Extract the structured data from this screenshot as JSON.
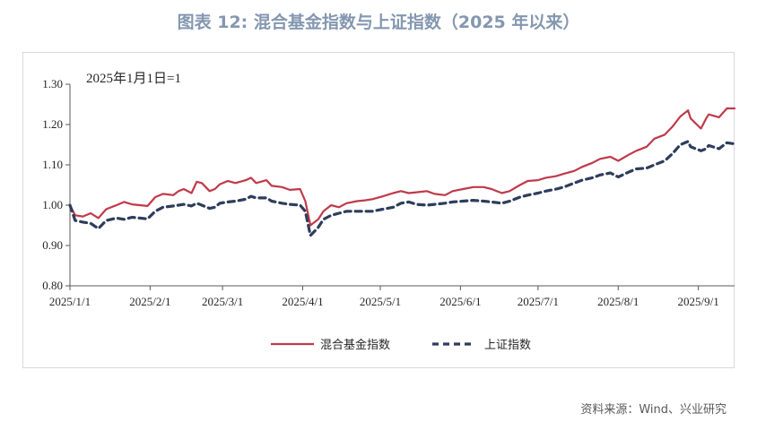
{
  "title": "图表 12: 混合基金指数与上证指数（2025 年以来）",
  "source": "资料来源：Wind、兴业研究",
  "chart_data": {
    "type": "line",
    "annotation": "2025年1月1日=1",
    "xlabel": "",
    "ylabel": "",
    "ylim": [
      0.8,
      1.3
    ],
    "y_ticks": [
      "0.80",
      "0.90",
      "1.00",
      "1.10",
      "1.20",
      "1.30"
    ],
    "x_ticks": [
      "2025/1/1",
      "2025/2/1",
      "2025/3/1",
      "2025/4/1",
      "2025/5/1",
      "2025/6/1",
      "2025/7/1",
      "2025/8/1",
      "2025/9/1"
    ],
    "xlim": [
      "2025-01-01",
      "2025-09-15"
    ],
    "grid": false,
    "legend_position": "bottom",
    "series": [
      {
        "name": "混合基金指数",
        "color": "#c0394a",
        "style": "solid",
        "x": [
          "2025-01-01",
          "2025-01-03",
          "2025-01-06",
          "2025-01-09",
          "2025-01-12",
          "2025-01-15",
          "2025-01-19",
          "2025-01-22",
          "2025-01-25",
          "2025-01-28",
          "2025-01-31",
          "2025-02-03",
          "2025-02-06",
          "2025-02-10",
          "2025-02-12",
          "2025-02-14",
          "2025-02-17",
          "2025-02-19",
          "2025-02-21",
          "2025-02-24",
          "2025-02-26",
          "2025-02-28",
          "2025-03-03",
          "2025-03-06",
          "2025-03-10",
          "2025-03-12",
          "2025-03-14",
          "2025-03-18",
          "2025-03-20",
          "2025-03-24",
          "2025-03-27",
          "2025-03-31",
          "2025-04-02",
          "2025-04-04",
          "2025-04-07",
          "2025-04-09",
          "2025-04-12",
          "2025-04-15",
          "2025-04-18",
          "2025-04-22",
          "2025-04-25",
          "2025-04-28",
          "2025-05-02",
          "2025-05-06",
          "2025-05-09",
          "2025-05-12",
          "2025-05-15",
          "2025-05-19",
          "2025-05-22",
          "2025-05-26",
          "2025-05-29",
          "2025-06-02",
          "2025-06-06",
          "2025-06-10",
          "2025-06-13",
          "2025-06-17",
          "2025-06-20",
          "2025-06-24",
          "2025-06-27",
          "2025-07-01",
          "2025-07-04",
          "2025-07-08",
          "2025-07-11",
          "2025-07-15",
          "2025-07-18",
          "2025-07-22",
          "2025-07-25",
          "2025-07-29",
          "2025-08-01",
          "2025-08-05",
          "2025-08-08",
          "2025-08-12",
          "2025-08-15",
          "2025-08-19",
          "2025-08-22",
          "2025-08-25",
          "2025-08-28",
          "2025-08-29",
          "2025-09-02",
          "2025-09-04",
          "2025-09-05",
          "2025-09-09",
          "2025-09-12",
          "2025-09-15"
        ],
        "values": [
          1.0,
          0.975,
          0.972,
          0.98,
          0.968,
          0.99,
          1.0,
          1.008,
          1.002,
          1.0,
          0.998,
          1.02,
          1.028,
          1.025,
          1.035,
          1.04,
          1.03,
          1.058,
          1.055,
          1.035,
          1.04,
          1.052,
          1.06,
          1.055,
          1.062,
          1.068,
          1.055,
          1.062,
          1.048,
          1.045,
          1.038,
          1.04,
          1.01,
          0.95,
          0.965,
          0.985,
          1.0,
          0.995,
          1.005,
          1.01,
          1.012,
          1.015,
          1.022,
          1.03,
          1.035,
          1.03,
          1.032,
          1.035,
          1.028,
          1.025,
          1.035,
          1.04,
          1.045,
          1.045,
          1.04,
          1.03,
          1.035,
          1.05,
          1.06,
          1.062,
          1.068,
          1.072,
          1.078,
          1.085,
          1.095,
          1.105,
          1.115,
          1.12,
          1.11,
          1.125,
          1.135,
          1.145,
          1.165,
          1.175,
          1.195,
          1.22,
          1.235,
          1.215,
          1.19,
          1.215,
          1.225,
          1.218,
          1.24,
          1.24
        ]
      },
      {
        "name": "上证指数",
        "color": "#2e3d5c",
        "style": "dashed",
        "x": [
          "2025-01-01",
          "2025-01-03",
          "2025-01-06",
          "2025-01-09",
          "2025-01-12",
          "2025-01-15",
          "2025-01-19",
          "2025-01-22",
          "2025-01-25",
          "2025-01-28",
          "2025-01-31",
          "2025-02-03",
          "2025-02-06",
          "2025-02-10",
          "2025-02-12",
          "2025-02-14",
          "2025-02-17",
          "2025-02-19",
          "2025-02-21",
          "2025-02-24",
          "2025-02-26",
          "2025-02-28",
          "2025-03-03",
          "2025-03-06",
          "2025-03-10",
          "2025-03-12",
          "2025-03-14",
          "2025-03-18",
          "2025-03-20",
          "2025-03-24",
          "2025-03-27",
          "2025-03-31",
          "2025-04-02",
          "2025-04-04",
          "2025-04-07",
          "2025-04-09",
          "2025-04-12",
          "2025-04-15",
          "2025-04-18",
          "2025-04-22",
          "2025-04-25",
          "2025-04-28",
          "2025-05-02",
          "2025-05-06",
          "2025-05-09",
          "2025-05-12",
          "2025-05-15",
          "2025-05-19",
          "2025-05-22",
          "2025-05-26",
          "2025-05-29",
          "2025-06-02",
          "2025-06-06",
          "2025-06-10",
          "2025-06-13",
          "2025-06-17",
          "2025-06-20",
          "2025-06-24",
          "2025-06-27",
          "2025-07-01",
          "2025-07-04",
          "2025-07-08",
          "2025-07-11",
          "2025-07-15",
          "2025-07-18",
          "2025-07-22",
          "2025-07-25",
          "2025-07-29",
          "2025-08-01",
          "2025-08-05",
          "2025-08-08",
          "2025-08-12",
          "2025-08-15",
          "2025-08-19",
          "2025-08-22",
          "2025-08-25",
          "2025-08-28",
          "2025-08-29",
          "2025-09-02",
          "2025-09-04",
          "2025-09-05",
          "2025-09-09",
          "2025-09-12",
          "2025-09-15"
        ],
        "values": [
          1.0,
          0.962,
          0.958,
          0.955,
          0.942,
          0.962,
          0.968,
          0.965,
          0.97,
          0.968,
          0.966,
          0.985,
          0.995,
          0.998,
          1.0,
          1.002,
          0.998,
          1.005,
          1.0,
          0.992,
          0.995,
          1.005,
          1.008,
          1.01,
          1.015,
          1.022,
          1.018,
          1.018,
          1.01,
          1.005,
          1.002,
          1.0,
          0.985,
          0.925,
          0.945,
          0.965,
          0.975,
          0.98,
          0.985,
          0.985,
          0.985,
          0.985,
          0.99,
          0.995,
          1.005,
          1.008,
          1.002,
          1.0,
          1.002,
          1.005,
          1.008,
          1.01,
          1.012,
          1.01,
          1.008,
          1.005,
          1.01,
          1.02,
          1.025,
          1.03,
          1.035,
          1.04,
          1.045,
          1.055,
          1.062,
          1.068,
          1.075,
          1.08,
          1.07,
          1.082,
          1.09,
          1.092,
          1.1,
          1.11,
          1.128,
          1.15,
          1.158,
          1.145,
          1.135,
          1.14,
          1.148,
          1.14,
          1.155,
          1.152
        ]
      }
    ]
  }
}
